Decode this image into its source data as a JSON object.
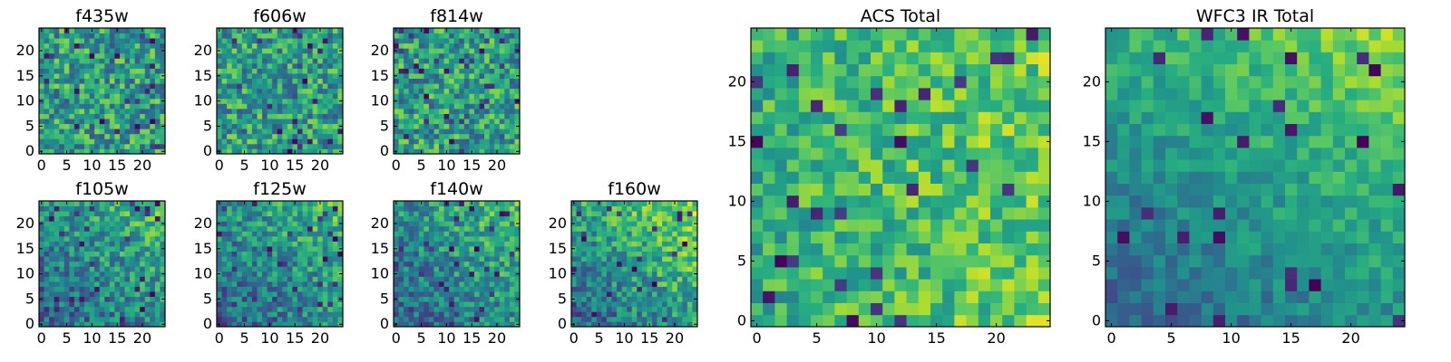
{
  "figure": {
    "colormap": [
      "#440154",
      "#472d7b",
      "#3b528b",
      "#2c728e",
      "#21918c",
      "#28ae80",
      "#5ec962",
      "#addc30",
      "#fde725"
    ]
  },
  "chart_data": [
    {
      "type": "heatmap",
      "title": "f435w",
      "grid_size": 25,
      "xticks": [
        "0",
        "5",
        "10",
        "15",
        "20"
      ],
      "yticks": [
        "0",
        "5",
        "10",
        "15",
        "20"
      ],
      "xlim": [
        0,
        25
      ],
      "ylim": [
        0,
        25
      ],
      "pattern": "uniform"
    },
    {
      "type": "heatmap",
      "title": "f606w",
      "grid_size": 25,
      "xticks": [
        "0",
        "5",
        "10",
        "15",
        "20"
      ],
      "yticks": [
        "0",
        "5",
        "10",
        "15",
        "20"
      ],
      "xlim": [
        0,
        25
      ],
      "ylim": [
        0,
        25
      ],
      "pattern": "uniform"
    },
    {
      "type": "heatmap",
      "title": "f814w",
      "grid_size": 25,
      "xticks": [
        "0",
        "5",
        "10",
        "15",
        "20"
      ],
      "yticks": [
        "0",
        "5",
        "10",
        "15",
        "20"
      ],
      "xlim": [
        0,
        25
      ],
      "ylim": [
        0,
        25
      ],
      "pattern": "uniform"
    },
    {
      "type": "heatmap",
      "title": "f105w",
      "grid_size": 25,
      "xticks": [
        "0",
        "5",
        "10",
        "15",
        "20"
      ],
      "yticks": [
        "0",
        "5",
        "10",
        "15",
        "20"
      ],
      "xlim": [
        0,
        25
      ],
      "ylim": [
        0,
        25
      ],
      "pattern": "ir"
    },
    {
      "type": "heatmap",
      "title": "f125w",
      "grid_size": 25,
      "xticks": [
        "0",
        "5",
        "10",
        "15",
        "20"
      ],
      "yticks": [
        "0",
        "5",
        "10",
        "15",
        "20"
      ],
      "xlim": [
        0,
        25
      ],
      "ylim": [
        0,
        25
      ],
      "pattern": "ir"
    },
    {
      "type": "heatmap",
      "title": "f140w",
      "grid_size": 25,
      "xticks": [
        "0",
        "5",
        "10",
        "15",
        "20"
      ],
      "yticks": [
        "0",
        "5",
        "10",
        "15",
        "20"
      ],
      "xlim": [
        0,
        25
      ],
      "ylim": [
        0,
        25
      ],
      "pattern": "ir"
    },
    {
      "type": "heatmap",
      "title": "f160w",
      "grid_size": 25,
      "xticks": [
        "0",
        "5",
        "10",
        "15",
        "20"
      ],
      "yticks": [
        "0",
        "5",
        "10",
        "15",
        "20"
      ],
      "xlim": [
        0,
        25
      ],
      "ylim": [
        0,
        25
      ],
      "pattern": "ir-strong"
    },
    {
      "type": "heatmap",
      "title": "ACS Total",
      "grid_size": 25,
      "xticks": [
        "0",
        "5",
        "10",
        "15",
        "20"
      ],
      "yticks": [
        "0",
        "5",
        "10",
        "15",
        "20"
      ],
      "xlim": [
        0,
        25
      ],
      "ylim": [
        0,
        25
      ],
      "pattern": "acs"
    },
    {
      "type": "heatmap",
      "title": "WFC3 IR Total",
      "grid_size": 25,
      "xticks": [
        "0",
        "5",
        "10",
        "15",
        "20"
      ],
      "yticks": [
        "0",
        "5",
        "10",
        "15",
        "20"
      ],
      "xlim": [
        0,
        25
      ],
      "ylim": [
        0,
        25
      ],
      "pattern": "ir-total"
    }
  ]
}
